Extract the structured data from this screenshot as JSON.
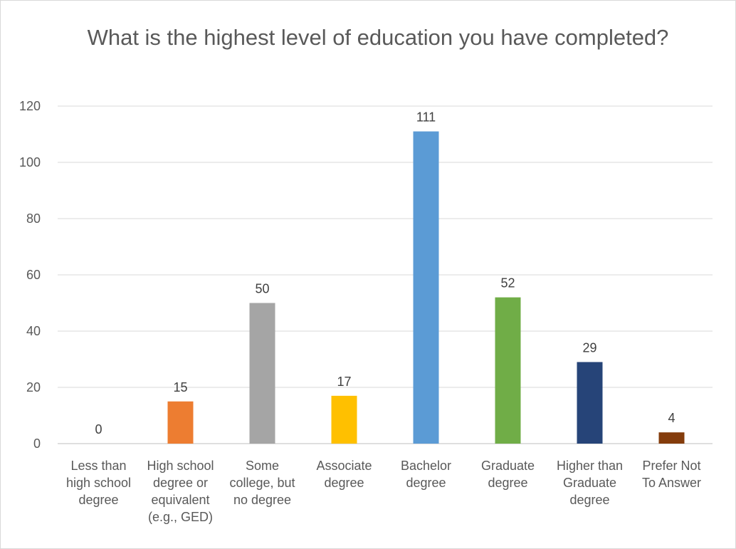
{
  "chart_data": {
    "type": "bar",
    "title": "What is the highest level of education you have completed?",
    "xlabel": "",
    "ylabel": "",
    "ylim": [
      0,
      120
    ],
    "yticks": [
      "0",
      "20",
      "40",
      "60",
      "80",
      "100",
      "120"
    ],
    "grid": true,
    "categories": [
      "Less than high school degree",
      "High school degree or equivalent (e.g., GED)",
      "Some college, but no degree",
      "Associate degree",
      "Bachelor degree",
      "Graduate degree",
      "Higher than Graduate degree",
      "Prefer Not To Answer"
    ],
    "category_lines": [
      [
        "Less than",
        "high school",
        "degree"
      ],
      [
        "High school",
        "degree or",
        "equivalent",
        "(e.g., GED)"
      ],
      [
        "Some",
        "college, but",
        "no degree"
      ],
      [
        "Associate",
        "degree"
      ],
      [
        "Bachelor",
        "degree"
      ],
      [
        "Graduate",
        "degree"
      ],
      [
        "Higher than",
        "Graduate",
        "degree"
      ],
      [
        "Prefer Not",
        "To Answer"
      ]
    ],
    "values": [
      0,
      15,
      50,
      17,
      111,
      52,
      29,
      4
    ],
    "data_labels": [
      "0",
      "15",
      "50",
      "17",
      "111",
      "52",
      "29",
      "4"
    ],
    "colors": [
      "#4472C4",
      "#ED7D31",
      "#A5A5A5",
      "#FFC000",
      "#5B9BD5",
      "#70AD47",
      "#264478",
      "#843C0C"
    ]
  }
}
